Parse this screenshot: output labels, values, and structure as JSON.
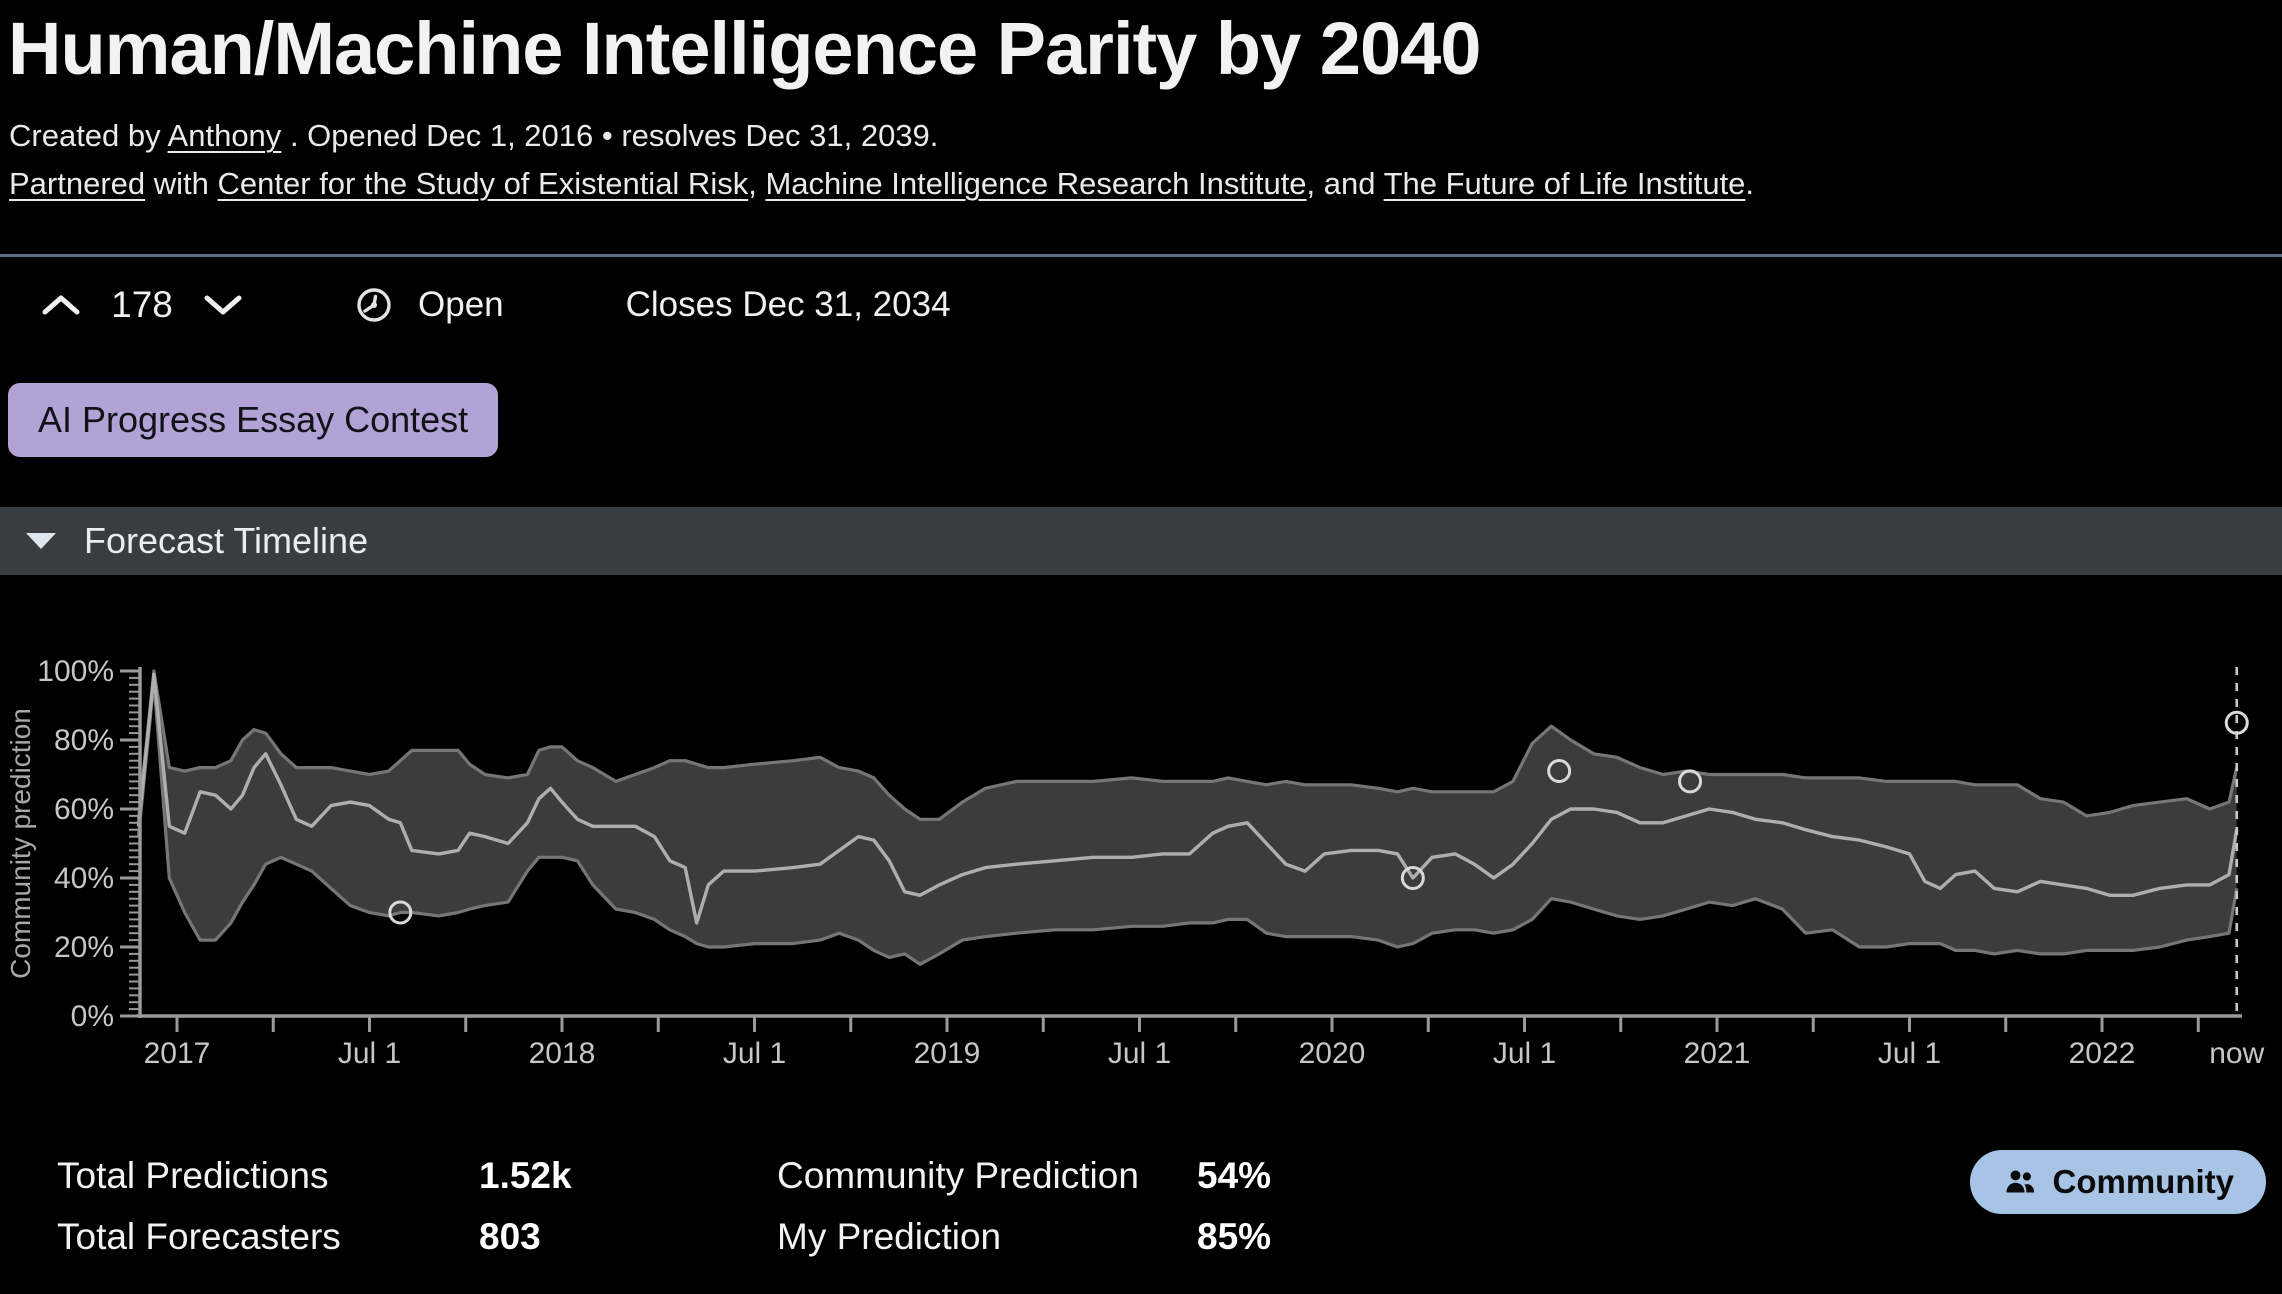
{
  "header": {
    "title": "Human/Machine Intelligence Parity by 2040",
    "created_prefix": "Created by",
    "author": "Anthony",
    "created_suffix": ". Opened Dec 1, 2016 • resolves Dec 31, 2039.",
    "partnered_link": "Partnered",
    "with_text": "with",
    "partner1": "Center for the Study of Existential Risk",
    "sep1": ",",
    "partner2": "Machine Intelligence Research Institute",
    "sep2": ", and",
    "partner3": "The Future of Life Institute",
    "period": "."
  },
  "vote_bar": {
    "score": "178",
    "status_label": "Open",
    "closes_text": "Closes Dec 31, 2034"
  },
  "badge": {
    "label": "AI Progress Essay Contest",
    "bg_color": "#b2a2d6"
  },
  "section": {
    "title": "Forecast Timeline"
  },
  "stats": {
    "items": [
      {
        "label": "Total Predictions",
        "value": "1.52k"
      },
      {
        "label": "Total Forecasters",
        "value": "803"
      },
      {
        "label": "Community Prediction",
        "value": "54%"
      },
      {
        "label": "My Prediction",
        "value": "85%"
      }
    ]
  },
  "community_button": {
    "label": "Community",
    "bg_color": "#a7c4e6"
  },
  "icons": {
    "vote_up": "chevron-up",
    "vote_down": "chevron-down",
    "status": "clock",
    "section_caret": "triangle-down",
    "community": "people-group"
  },
  "chart_data": {
    "type": "area",
    "title": "Forecast Timeline",
    "ylabel": "Community prediction",
    "ylim": [
      0,
      100
    ],
    "grid": false,
    "series_note": "median = community prediction line; lower/upper = interquartile band (percent)",
    "series": {
      "x": [
        2016.9,
        2016.94,
        2016.98,
        2017.02,
        2017.06,
        2017.1,
        2017.14,
        2017.17,
        2017.2,
        2017.23,
        2017.27,
        2017.31,
        2017.35,
        2017.4,
        2017.45,
        2017.5,
        2017.55,
        2017.58,
        2017.61,
        2017.68,
        2017.73,
        2017.76,
        2017.8,
        2017.86,
        2017.91,
        2017.94,
        2017.97,
        2018.0,
        2018.04,
        2018.08,
        2018.14,
        2018.19,
        2018.24,
        2018.28,
        2018.32,
        2018.35,
        2018.38,
        2018.42,
        2018.5,
        2018.6,
        2018.67,
        2018.72,
        2018.77,
        2018.81,
        2018.85,
        2018.89,
        2018.93,
        2018.98,
        2019.04,
        2019.1,
        2019.18,
        2019.28,
        2019.38,
        2019.48,
        2019.56,
        2019.63,
        2019.69,
        2019.73,
        2019.78,
        2019.83,
        2019.88,
        2019.93,
        2019.98,
        2020.05,
        2020.12,
        2020.17,
        2020.21,
        2020.26,
        2020.32,
        2020.37,
        2020.42,
        2020.47,
        2020.52,
        2020.57,
        2020.62,
        2020.68,
        2020.74,
        2020.8,
        2020.86,
        2020.92,
        2020.98,
        2021.04,
        2021.1,
        2021.17,
        2021.23,
        2021.3,
        2021.37,
        2021.44,
        2021.5,
        2021.54,
        2021.58,
        2021.62,
        2021.67,
        2021.72,
        2021.78,
        2021.84,
        2021.9,
        2021.96,
        2022.02,
        2022.08,
        2022.15,
        2022.22,
        2022.28,
        2022.33,
        2022.35
      ],
      "median": [
        55,
        99,
        55,
        53,
        65,
        64,
        60,
        64,
        72,
        76,
        67,
        57,
        55,
        61,
        62,
        61,
        57,
        56,
        48,
        47,
        48,
        53,
        52,
        50,
        56,
        63,
        66,
        62,
        57,
        55,
        55,
        55,
        52,
        45,
        43,
        27,
        38,
        42,
        42,
        43,
        44,
        48,
        52,
        51,
        45,
        36,
        35,
        38,
        41,
        43,
        44,
        45,
        46,
        46,
        47,
        47,
        53,
        55,
        56,
        50,
        44,
        42,
        47,
        48,
        48,
        47,
        40,
        46,
        47,
        44,
        40,
        44,
        50,
        57,
        60,
        60,
        59,
        56,
        56,
        58,
        60,
        59,
        57,
        56,
        54,
        52,
        51,
        49,
        47,
        39,
        37,
        41,
        42,
        37,
        36,
        39,
        38,
        37,
        35,
        35,
        37,
        38,
        38,
        41,
        54
      ],
      "lower": [
        52,
        97,
        40,
        30,
        22,
        22,
        27,
        33,
        38,
        44,
        46,
        44,
        42,
        37,
        32,
        30,
        29,
        30,
        30,
        29,
        30,
        31,
        32,
        33,
        42,
        46,
        46,
        46,
        45,
        38,
        31,
        30,
        28,
        25,
        23,
        21,
        20,
        20,
        21,
        21,
        22,
        24,
        22,
        19,
        17,
        18,
        15,
        18,
        22,
        23,
        24,
        25,
        25,
        26,
        26,
        27,
        27,
        28,
        28,
        24,
        23,
        23,
        23,
        23,
        22,
        20,
        21,
        24,
        25,
        25,
        24,
        25,
        28,
        34,
        33,
        31,
        29,
        28,
        29,
        31,
        33,
        32,
        34,
        31,
        24,
        25,
        20,
        20,
        21,
        21,
        21,
        19,
        19,
        18,
        19,
        18,
        18,
        19,
        19,
        19,
        20,
        22,
        23,
        24,
        37
      ],
      "upper": [
        57,
        100,
        72,
        71,
        72,
        72,
        74,
        80,
        83,
        82,
        76,
        72,
        72,
        72,
        71,
        70,
        71,
        74,
        77,
        77,
        77,
        73,
        70,
        69,
        70,
        77,
        78,
        78,
        74,
        72,
        68,
        70,
        72,
        74,
        74,
        73,
        72,
        72,
        73,
        74,
        75,
        72,
        71,
        69,
        64,
        60,
        57,
        57,
        62,
        66,
        68,
        68,
        68,
        69,
        68,
        68,
        68,
        69,
        68,
        67,
        68,
        67,
        67,
        67,
        66,
        65,
        66,
        65,
        65,
        65,
        65,
        68,
        79,
        84,
        80,
        76,
        75,
        72,
        70,
        71,
        70,
        70,
        70,
        70,
        69,
        69,
        69,
        68,
        68,
        68,
        68,
        68,
        67,
        67,
        67,
        63,
        62,
        58,
        59,
        61,
        62,
        63,
        60,
        62,
        72
      ]
    },
    "markers": [
      [
        2017.58,
        30
      ],
      [
        2020.21,
        40
      ],
      [
        2020.59,
        71
      ],
      [
        2020.93,
        68
      ],
      [
        2022.35,
        85
      ]
    ],
    "x_ticks": [
      {
        "x": 2017.0,
        "label": "2017"
      },
      {
        "x": 2017.25,
        "label": ""
      },
      {
        "x": 2017.5,
        "label": "Jul 1"
      },
      {
        "x": 2017.75,
        "label": ""
      },
      {
        "x": 2018.0,
        "label": "2018"
      },
      {
        "x": 2018.25,
        "label": ""
      },
      {
        "x": 2018.5,
        "label": "Jul 1"
      },
      {
        "x": 2018.75,
        "label": ""
      },
      {
        "x": 2019.0,
        "label": "2019"
      },
      {
        "x": 2019.25,
        "label": ""
      },
      {
        "x": 2019.5,
        "label": "Jul 1"
      },
      {
        "x": 2019.75,
        "label": ""
      },
      {
        "x": 2020.0,
        "label": "2020"
      },
      {
        "x": 2020.25,
        "label": ""
      },
      {
        "x": 2020.5,
        "label": "Jul 1"
      },
      {
        "x": 2020.75,
        "label": ""
      },
      {
        "x": 2021.0,
        "label": "2021"
      },
      {
        "x": 2021.25,
        "label": ""
      },
      {
        "x": 2021.5,
        "label": "Jul 1"
      },
      {
        "x": 2021.75,
        "label": ""
      },
      {
        "x": 2022.0,
        "label": "2022"
      },
      {
        "x": 2022.25,
        "label": ""
      }
    ],
    "y_ticks": {
      "values": [
        0,
        20,
        40,
        60,
        80,
        100
      ],
      "labels": [
        "0%",
        "20%",
        "40%",
        "60%",
        "80%",
        "100%"
      ],
      "minor_step": 2
    },
    "now": {
      "x": 2022.35,
      "label": "now"
    },
    "colors": {
      "band_fill": "#3c3c3c",
      "band_edge": "#767676",
      "median_line": "#aeaeae",
      "axis": "#9a9a9a",
      "tick_label": "#c6c6c6",
      "axis_label": "#a8a8a8",
      "now_line": "#c9c9c9",
      "marker_stroke": "#d9d9d9"
    }
  }
}
